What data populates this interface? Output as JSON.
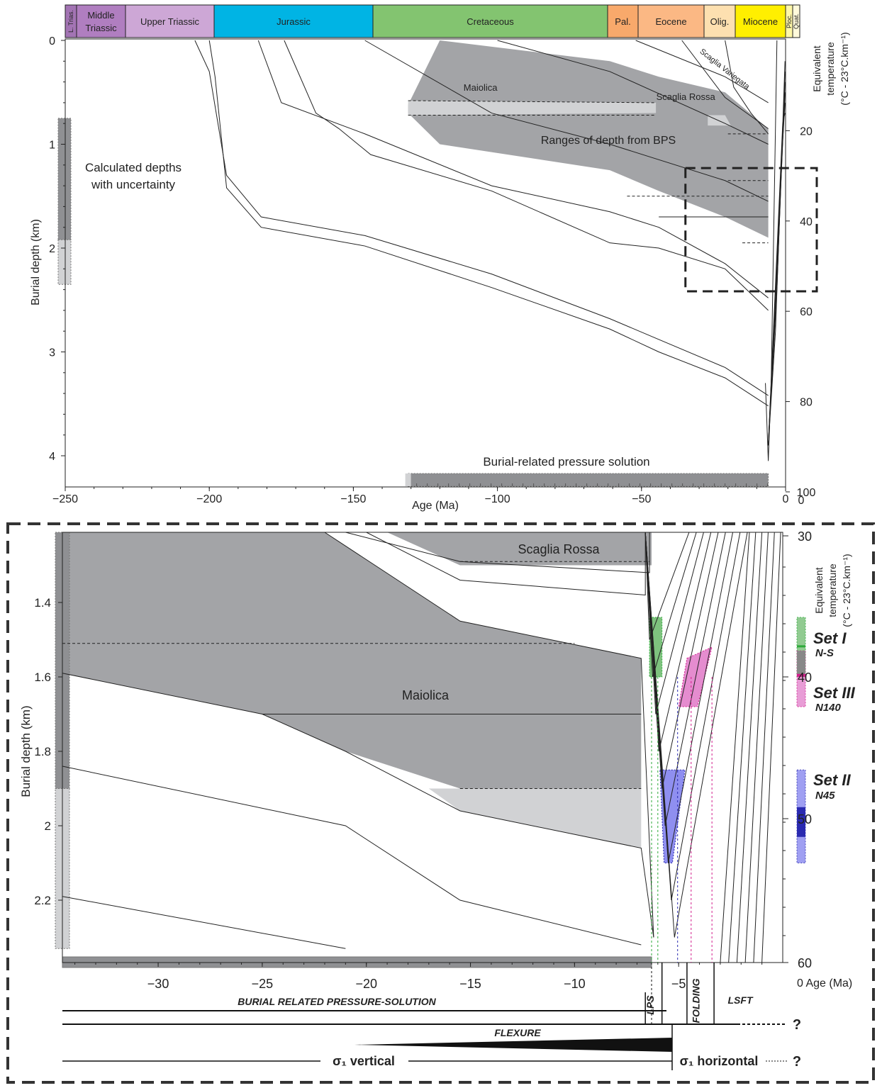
{
  "colors": {
    "dark_fill": "#a3a4a7",
    "light_fill": "#d1d2d4",
    "set1": "#2eaa3a",
    "set2": "#2a2ab0",
    "set3": "#d21c8c",
    "pink_fill": "#e58ccf",
    "blue_fill": "#8f8ff0",
    "green_fill": "#7ec27e"
  },
  "periods": [
    {
      "label": "L. Trias.",
      "color": "#a374b4"
    },
    {
      "label": "Middle\nTriassic",
      "color": "#b07ec0"
    },
    {
      "label": "Upper Triassic",
      "color": "#cda7d6"
    },
    {
      "label": "Jurassic",
      "color": "#00b4e4"
    },
    {
      "label": "Cretaceous",
      "color": "#83c470"
    },
    {
      "label": "Pal.",
      "color": "#f8a96b"
    },
    {
      "label": "Eocene",
      "color": "#fbb884"
    },
    {
      "label": "Olig.",
      "color": "#fde0b0"
    },
    {
      "label": "Miocene",
      "color": "#ffef00"
    },
    {
      "label": "Ploc.",
      "color": "#fff7a8"
    },
    {
      "label": "Quat.",
      "color": "#fffadb"
    }
  ],
  "chart_data": [
    {
      "type": "line",
      "title": "",
      "xlabel": "Age (Ma)",
      "ylabel": "Burial depth (km)",
      "y2label_line1": "Equivalent",
      "y2label_line2": "temperature",
      "y2label_line3": "(°C - 23°C.km⁻¹)",
      "xlim": [
        -250,
        0
      ],
      "ylim": [
        0,
        4.2
      ],
      "x_ticks": [
        "-250",
        "-200",
        "-150",
        "-100",
        "-50",
        "0"
      ],
      "y_ticks": [
        "0",
        "1",
        "2",
        "3",
        "4"
      ],
      "y2_ticks": [
        "20",
        "40",
        "60",
        "80",
        "100"
      ],
      "annotations": {
        "maiolica": "Maiolica",
        "scaglia_rossa": "Scaglia Rossa",
        "scaglia_variegata": "Scaglia Variegata",
        "bps_range": "Ranges of depth from BPS",
        "calc_line1": "Calculated depths",
        "calc_line2": "with uncertainty",
        "bps_bar": "Burial-related pressure solution"
      },
      "burial_curves": [
        {
          "x": [
            -205,
            -200,
            -194,
            -182,
            -146,
            -102,
            -61,
            -44,
            -21,
            -6
          ],
          "y": [
            0,
            0.3,
            1.3,
            1.7,
            1.88,
            2.25,
            2.68,
            2.88,
            3.15,
            3.42
          ]
        },
        {
          "x": [
            -200,
            -198,
            -194,
            -182,
            -146,
            -102,
            -61,
            -44,
            -21,
            -6
          ],
          "y": [
            0,
            0.35,
            1.42,
            1.8,
            1.98,
            2.38,
            2.78,
            3.0,
            3.25,
            3.52
          ]
        },
        {
          "x": [
            -183,
            -175,
            -146,
            -102,
            -61,
            -44,
            -21,
            -6
          ],
          "y": [
            0,
            0.6,
            0.9,
            1.4,
            1.65,
            1.8,
            2.15,
            2.48
          ]
        },
        {
          "x": [
            -174,
            -163,
            -155,
            -144,
            -102,
            -61,
            -44,
            -21,
            -6
          ],
          "y": [
            0,
            0.7,
            0.85,
            1.1,
            1.45,
            1.95,
            2.0,
            2.2,
            2.6
          ]
        },
        {
          "x": [
            -146,
            -102,
            -61,
            -21,
            -6
          ],
          "y": [
            0,
            0.7,
            1.0,
            1.35,
            1.55
          ]
        },
        {
          "x": [
            -100,
            -61,
            -21,
            -6
          ],
          "y": [
            0,
            0.3,
            0.8,
            1.0
          ]
        },
        {
          "x": [
            -52,
            -21,
            -6
          ],
          "y": [
            0,
            0.35,
            0.6
          ]
        },
        {
          "x": [
            -36,
            -21,
            -6
          ],
          "y": [
            0,
            0.55,
            0.85
          ]
        }
      ],
      "bps_polygon": {
        "x": [
          -131,
          -131,
          -120,
          -61,
          -44,
          -21,
          -6,
          -6,
          -21,
          -44,
          -61,
          -120
        ],
        "y": [
          0.62,
          0.7,
          1.0,
          1.25,
          1.45,
          1.7,
          1.9,
          0.85,
          0.5,
          0.35,
          0.2,
          0.0
        ]
      },
      "calc_depth_dark": [
        0.75,
        1.92
      ],
      "calc_depth_light": [
        1.92,
        2.35
      ],
      "bps_bar_range_ma": [
        -131,
        -6
      ],
      "zoom_box": {
        "x": [
          -35,
          0
        ],
        "y": [
          1.25,
          2.3
        ]
      }
    },
    {
      "type": "line",
      "title": "",
      "xlabel": "Age (Ma)",
      "ylabel": "Burial depth (km)",
      "y2label_line1": "Equivalent",
      "y2label_line2": "temperature",
      "y2label_line3": "(°C - 23°C.km⁻¹)",
      "xlim": [
        -34.6,
        0
      ],
      "ylim": [
        1.25,
        2.33
      ],
      "x_ticks": [
        "-30",
        "-25",
        "-20",
        "-15",
        "-10",
        "-5",
        "0"
      ],
      "x_zero_label": "0 Age (Ma)",
      "y_ticks": [
        "1.4",
        "1.6",
        "1.8",
        "2",
        "2.2"
      ],
      "y2_ticks": [
        "30",
        "40",
        "50",
        "60"
      ],
      "annotations": {
        "scaglia_rossa": "Scaglia Rossa",
        "maiolica": "Maiolica"
      },
      "sets": [
        {
          "name": "Set I",
          "orientation": "N-S",
          "depth_range": [
            1.44,
            1.6
          ],
          "age_range": [
            -6.4,
            -5.8
          ]
        },
        {
          "name": "Set III",
          "orientation": "N140",
          "depth_range": [
            1.53,
            1.68
          ],
          "age_range": [
            -4.5,
            -3.3
          ]
        },
        {
          "name": "Set II",
          "orientation": "N45",
          "depth_range": [
            1.85,
            2.1
          ],
          "age_range": [
            -5.9,
            -4.7
          ]
        }
      ],
      "phases": [
        {
          "label": "BURIAL RELATED PRESSURE-SOLUTION"
        },
        {
          "label": "LPS"
        },
        {
          "label": "FOLDING"
        },
        {
          "label": "LSFT"
        },
        {
          "label": "FLEXURE"
        }
      ],
      "stress": {
        "vertical": "σ₁ vertical",
        "horizontal": "σ₁ horizontal",
        "unknown": "?"
      }
    }
  ]
}
